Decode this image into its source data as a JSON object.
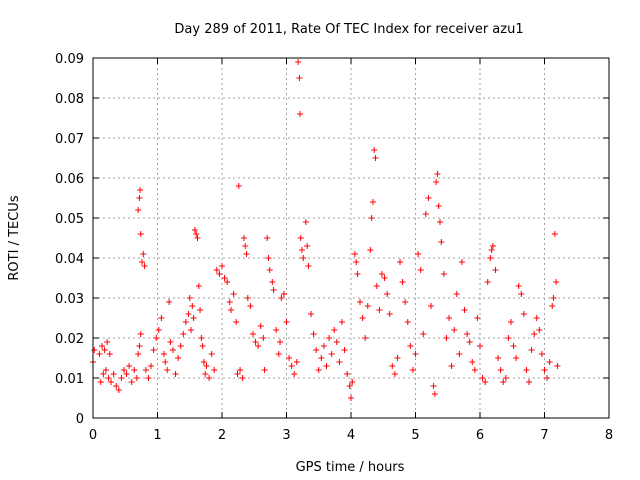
{
  "chart_data": {
    "type": "scatter",
    "title": "Day 289 of 2011, Rate Of TEC Index for receiver azu1",
    "xlabel": "GPS time / hours",
    "ylabel": "ROTI / TECUs",
    "xlim": [
      0,
      8
    ],
    "ylim": [
      0,
      0.09
    ],
    "x_ticks": [
      "0",
      "1",
      "2",
      "3",
      "4",
      "5",
      "6",
      "7",
      "8"
    ],
    "y_ticks": [
      "0",
      "0.01",
      "0.02",
      "0.03",
      "0.04",
      "0.05",
      "0.06",
      "0.07",
      "0.08",
      "0.09"
    ],
    "grid": true,
    "marker": "+",
    "color": "#ff0000",
    "series": [
      {
        "points": [
          [
            0.0,
            0.014
          ],
          [
            0.02,
            0.017
          ],
          [
            0.1,
            0.016
          ],
          [
            0.14,
            0.018
          ],
          [
            0.18,
            0.017
          ],
          [
            0.22,
            0.019
          ],
          [
            0.26,
            0.016
          ],
          [
            0.12,
            0.009
          ],
          [
            0.16,
            0.011
          ],
          [
            0.2,
            0.012
          ],
          [
            0.24,
            0.01
          ],
          [
            0.28,
            0.009
          ],
          [
            0.32,
            0.011
          ],
          [
            0.36,
            0.008
          ],
          [
            0.4,
            0.007
          ],
          [
            0.44,
            0.01
          ],
          [
            0.48,
            0.012
          ],
          [
            0.52,
            0.011
          ],
          [
            0.56,
            0.013
          ],
          [
            0.6,
            0.009
          ],
          [
            0.64,
            0.012
          ],
          [
            0.68,
            0.01
          ],
          [
            0.7,
            0.016
          ],
          [
            0.72,
            0.018
          ],
          [
            0.74,
            0.021
          ],
          [
            0.7,
            0.052
          ],
          [
            0.72,
            0.055
          ],
          [
            0.73,
            0.057
          ],
          [
            0.74,
            0.046
          ],
          [
            0.76,
            0.039
          ],
          [
            0.78,
            0.041
          ],
          [
            0.8,
            0.038
          ],
          [
            0.82,
            0.012
          ],
          [
            0.86,
            0.01
          ],
          [
            0.9,
            0.013
          ],
          [
            0.94,
            0.017
          ],
          [
            0.98,
            0.02
          ],
          [
            1.02,
            0.022
          ],
          [
            1.06,
            0.025
          ],
          [
            1.1,
            0.016
          ],
          [
            1.12,
            0.014
          ],
          [
            1.15,
            0.012
          ],
          [
            1.18,
            0.029
          ],
          [
            1.2,
            0.019
          ],
          [
            1.24,
            0.017
          ],
          [
            1.28,
            0.011
          ],
          [
            1.32,
            0.015
          ],
          [
            1.36,
            0.018
          ],
          [
            1.4,
            0.021
          ],
          [
            1.44,
            0.024
          ],
          [
            1.48,
            0.026
          ],
          [
            1.5,
            0.03
          ],
          [
            1.52,
            0.022
          ],
          [
            1.54,
            0.028
          ],
          [
            1.56,
            0.025
          ],
          [
            1.58,
            0.047
          ],
          [
            1.6,
            0.046
          ],
          [
            1.62,
            0.045
          ],
          [
            1.64,
            0.033
          ],
          [
            1.66,
            0.027
          ],
          [
            1.68,
            0.02
          ],
          [
            1.7,
            0.018
          ],
          [
            1.72,
            0.014
          ],
          [
            1.74,
            0.011
          ],
          [
            1.76,
            0.013
          ],
          [
            1.8,
            0.01
          ],
          [
            1.84,
            0.016
          ],
          [
            1.88,
            0.012
          ],
          [
            1.92,
            0.037
          ],
          [
            1.96,
            0.036
          ],
          [
            2.0,
            0.038
          ],
          [
            2.04,
            0.035
          ],
          [
            2.08,
            0.034
          ],
          [
            2.12,
            0.029
          ],
          [
            2.14,
            0.027
          ],
          [
            2.18,
            0.031
          ],
          [
            2.22,
            0.024
          ],
          [
            2.24,
            0.011
          ],
          [
            2.26,
            0.058
          ],
          [
            2.28,
            0.012
          ],
          [
            2.32,
            0.01
          ],
          [
            2.34,
            0.045
          ],
          [
            2.36,
            0.043
          ],
          [
            2.38,
            0.041
          ],
          [
            2.4,
            0.03
          ],
          [
            2.44,
            0.028
          ],
          [
            2.48,
            0.021
          ],
          [
            2.52,
            0.019
          ],
          [
            2.56,
            0.018
          ],
          [
            2.6,
            0.023
          ],
          [
            2.64,
            0.02
          ],
          [
            2.66,
            0.012
          ],
          [
            2.7,
            0.045
          ],
          [
            2.72,
            0.04
          ],
          [
            2.74,
            0.037
          ],
          [
            2.78,
            0.034
          ],
          [
            2.8,
            0.032
          ],
          [
            2.84,
            0.022
          ],
          [
            2.88,
            0.016
          ],
          [
            2.9,
            0.019
          ],
          [
            2.92,
            0.03
          ],
          [
            2.96,
            0.031
          ],
          [
            3.0,
            0.024
          ],
          [
            3.04,
            0.015
          ],
          [
            3.08,
            0.013
          ],
          [
            3.12,
            0.011
          ],
          [
            3.16,
            0.014
          ],
          [
            3.18,
            0.089
          ],
          [
            3.2,
            0.085
          ],
          [
            3.21,
            0.076
          ],
          [
            3.22,
            0.045
          ],
          [
            3.24,
            0.042
          ],
          [
            3.26,
            0.04
          ],
          [
            3.3,
            0.049
          ],
          [
            3.32,
            0.043
          ],
          [
            3.34,
            0.038
          ],
          [
            3.38,
            0.026
          ],
          [
            3.42,
            0.021
          ],
          [
            3.46,
            0.017
          ],
          [
            3.5,
            0.012
          ],
          [
            3.54,
            0.015
          ],
          [
            3.58,
            0.018
          ],
          [
            3.62,
            0.013
          ],
          [
            3.66,
            0.02
          ],
          [
            3.7,
            0.016
          ],
          [
            3.74,
            0.022
          ],
          [
            3.78,
            0.019
          ],
          [
            3.82,
            0.014
          ],
          [
            3.86,
            0.024
          ],
          [
            3.9,
            0.017
          ],
          [
            3.94,
            0.011
          ],
          [
            3.98,
            0.008
          ],
          [
            4.0,
            0.005
          ],
          [
            4.02,
            0.009
          ],
          [
            4.06,
            0.041
          ],
          [
            4.08,
            0.039
          ],
          [
            4.1,
            0.036
          ],
          [
            4.14,
            0.029
          ],
          [
            4.18,
            0.025
          ],
          [
            4.22,
            0.02
          ],
          [
            4.26,
            0.028
          ],
          [
            4.3,
            0.042
          ],
          [
            4.32,
            0.05
          ],
          [
            4.34,
            0.054
          ],
          [
            4.36,
            0.067
          ],
          [
            4.38,
            0.065
          ],
          [
            4.4,
            0.033
          ],
          [
            4.44,
            0.027
          ],
          [
            4.48,
            0.036
          ],
          [
            4.52,
            0.035
          ],
          [
            4.56,
            0.031
          ],
          [
            4.6,
            0.026
          ],
          [
            4.64,
            0.013
          ],
          [
            4.68,
            0.011
          ],
          [
            4.72,
            0.015
          ],
          [
            4.76,
            0.039
          ],
          [
            4.8,
            0.034
          ],
          [
            4.84,
            0.029
          ],
          [
            4.88,
            0.024
          ],
          [
            4.92,
            0.018
          ],
          [
            4.96,
            0.012
          ],
          [
            5.0,
            0.016
          ],
          [
            5.04,
            0.041
          ],
          [
            5.08,
            0.037
          ],
          [
            5.12,
            0.021
          ],
          [
            5.16,
            0.051
          ],
          [
            5.2,
            0.055
          ],
          [
            5.24,
            0.028
          ],
          [
            5.28,
            0.008
          ],
          [
            5.3,
            0.006
          ],
          [
            5.32,
            0.059
          ],
          [
            5.34,
            0.061
          ],
          [
            5.36,
            0.053
          ],
          [
            5.38,
            0.049
          ],
          [
            5.4,
            0.044
          ],
          [
            5.44,
            0.036
          ],
          [
            5.48,
            0.02
          ],
          [
            5.52,
            0.025
          ],
          [
            5.56,
            0.013
          ],
          [
            5.6,
            0.022
          ],
          [
            5.64,
            0.031
          ],
          [
            5.68,
            0.016
          ],
          [
            5.72,
            0.039
          ],
          [
            5.76,
            0.027
          ],
          [
            5.8,
            0.021
          ],
          [
            5.84,
            0.019
          ],
          [
            5.88,
            0.014
          ],
          [
            5.92,
            0.012
          ],
          [
            5.96,
            0.025
          ],
          [
            6.0,
            0.018
          ],
          [
            6.04,
            0.01
          ],
          [
            6.08,
            0.009
          ],
          [
            6.12,
            0.034
          ],
          [
            6.16,
            0.04
          ],
          [
            6.18,
            0.042
          ],
          [
            6.2,
            0.043
          ],
          [
            6.24,
            0.037
          ],
          [
            6.28,
            0.015
          ],
          [
            6.32,
            0.012
          ],
          [
            6.36,
            0.009
          ],
          [
            6.4,
            0.01
          ],
          [
            6.44,
            0.02
          ],
          [
            6.48,
            0.024
          ],
          [
            6.52,
            0.018
          ],
          [
            6.56,
            0.015
          ],
          [
            6.6,
            0.033
          ],
          [
            6.64,
            0.031
          ],
          [
            6.68,
            0.026
          ],
          [
            6.72,
            0.012
          ],
          [
            6.76,
            0.009
          ],
          [
            6.8,
            0.017
          ],
          [
            6.84,
            0.021
          ],
          [
            6.88,
            0.025
          ],
          [
            6.92,
            0.022
          ],
          [
            6.96,
            0.016
          ],
          [
            7.0,
            0.012
          ],
          [
            7.04,
            0.01
          ],
          [
            7.08,
            0.014
          ],
          [
            7.12,
            0.028
          ],
          [
            7.14,
            0.03
          ],
          [
            7.16,
            0.046
          ],
          [
            7.18,
            0.034
          ],
          [
            7.2,
            0.013
          ]
        ]
      }
    ]
  }
}
